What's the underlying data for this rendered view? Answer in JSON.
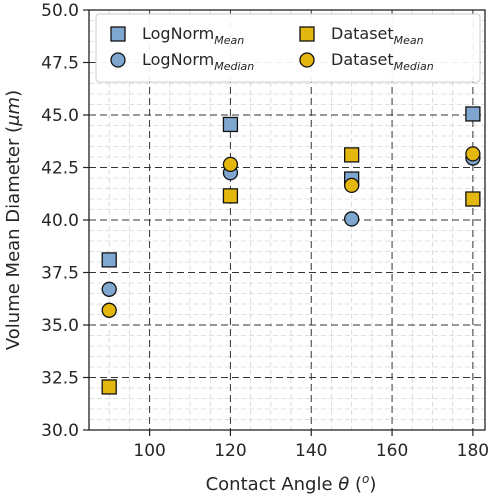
{
  "chart_data": {
    "type": "scatter",
    "xlabel": {
      "prefix": "Contact Angle ",
      "symbol": "θ",
      "unit_open": " (",
      "unit": "o",
      "unit_close": ")"
    },
    "ylabel": {
      "prefix": "Volume Mean Diameter (",
      "unit": "μm",
      "suffix": ")"
    },
    "xlim": [
      85,
      183
    ],
    "ylim": [
      30.0,
      50.0
    ],
    "x_ticks": [
      100,
      120,
      140,
      160,
      180
    ],
    "y_ticks": [
      30.0,
      32.5,
      35.0,
      37.5,
      40.0,
      42.5,
      45.0,
      47.5,
      50.0
    ],
    "x_tick_labels": [
      "100",
      "120",
      "140",
      "160",
      "180"
    ],
    "y_tick_labels": [
      "30.0",
      "32.5",
      "35.0",
      "37.5",
      "40.0",
      "42.5",
      "45.0",
      "47.5",
      "50.0"
    ],
    "grid": true,
    "legend_position": "top",
    "series": [
      {
        "name": "LogNorm",
        "sub": "Mean",
        "marker": "square",
        "color": "#7fa6cf",
        "x": [
          90,
          120,
          150,
          180
        ],
        "y": [
          38.1,
          44.55,
          41.95,
          45.05
        ]
      },
      {
        "name": "LogNorm",
        "sub": "Median",
        "marker": "circle",
        "color": "#7fa6cf",
        "x": [
          90,
          120,
          150,
          180
        ],
        "y": [
          36.7,
          42.25,
          40.05,
          42.95
        ]
      },
      {
        "name": "Dataset",
        "sub": "Mean",
        "marker": "square",
        "color": "#e4b70e",
        "x": [
          90,
          120,
          150,
          180
        ],
        "y": [
          32.05,
          41.15,
          43.1,
          41.0
        ]
      },
      {
        "name": "Dataset",
        "sub": "Median",
        "marker": "circle",
        "color": "#e4b70e",
        "x": [
          90,
          120,
          150,
          180
        ],
        "y": [
          35.7,
          42.65,
          41.65,
          43.15
        ]
      }
    ]
  }
}
